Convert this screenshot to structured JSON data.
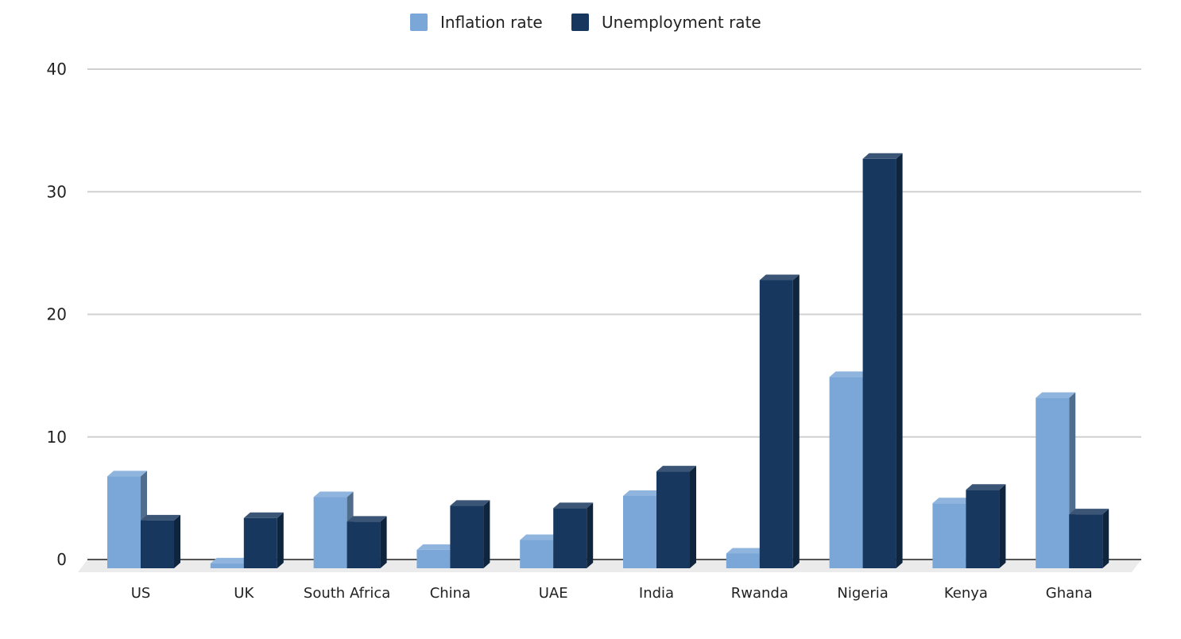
{
  "chart_data": {
    "type": "bar",
    "title": "",
    "xlabel": "",
    "ylabel": "",
    "ylim": [
      0,
      40
    ],
    "yticks": [
      0,
      10,
      20,
      30,
      40
    ],
    "grid": true,
    "legend_position": "top-center",
    "categories": [
      "US",
      "UK",
      "South Africa",
      "China",
      "UAE",
      "India",
      "Rwanda",
      "Nigeria",
      "Kenya",
      "Ghana"
    ],
    "series": [
      {
        "name": "Inflation rate",
        "color": "#7ba7d8",
        "values": [
          7.5,
          0.4,
          5.8,
          1.5,
          2.3,
          5.9,
          1.2,
          15.6,
          5.3,
          13.9
        ]
      },
      {
        "name": "Unemployment rate",
        "color": "#17375e",
        "values": [
          3.9,
          4.1,
          3.8,
          5.1,
          4.9,
          7.9,
          23.5,
          33.4,
          6.4,
          4.4
        ]
      }
    ]
  }
}
